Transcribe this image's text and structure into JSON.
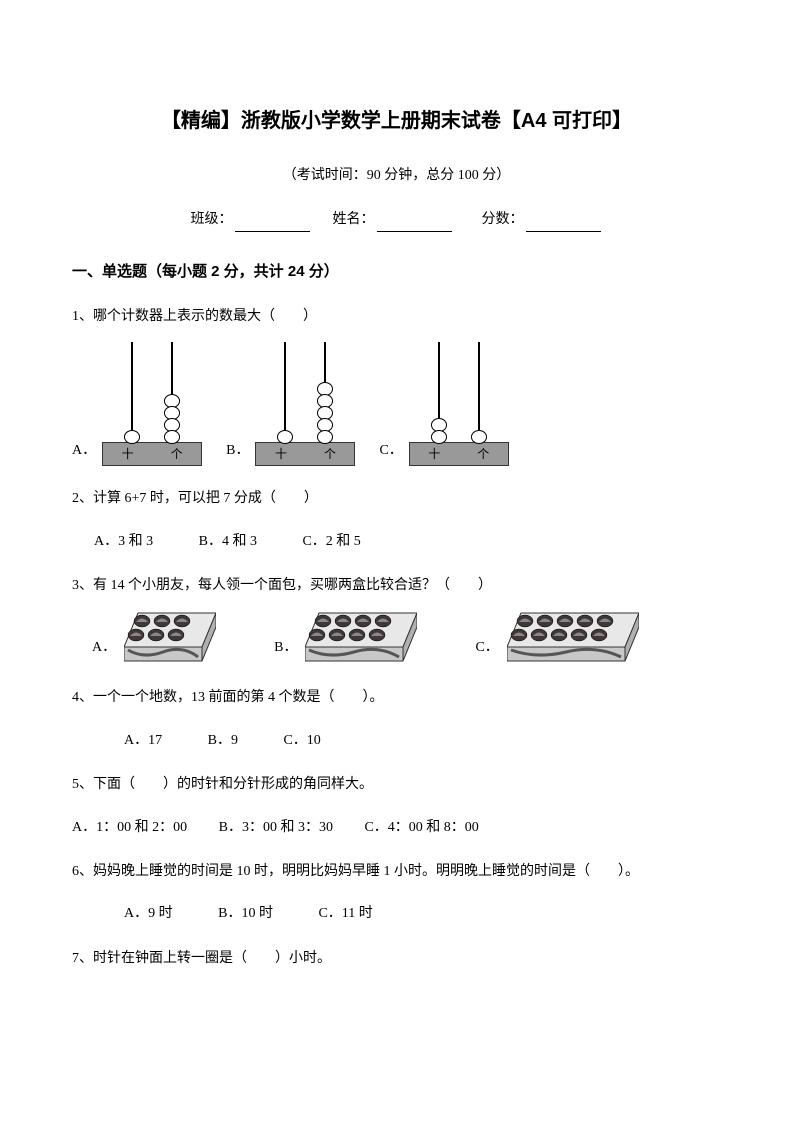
{
  "title": "【精编】浙教版小学数学上册期末试卷【A4 可打印】",
  "examInfo": "（考试时间：90 分钟，总分 100 分）",
  "fillLabels": {
    "class": "班级：",
    "name": "姓名：",
    "score": "分数："
  },
  "section1": "一、单选题（每小题 2 分，共计 24 分）",
  "q1": {
    "text": "1、哪个计数器上表示的数最大（　　）",
    "optA": "A．",
    "optB": "B．",
    "optC": "C．",
    "baseTen": "十",
    "baseOne": "个",
    "abacusA": {
      "tens": 1,
      "ones": 4
    },
    "abacusB": {
      "tens": 1,
      "ones": 5
    },
    "abacusC": {
      "tens": 2,
      "ones": 1
    }
  },
  "q2": {
    "text": "2、计算 6+7 时，可以把 7 分成（　　）",
    "optA": "A．3 和 3",
    "optB": "B．4 和 3",
    "optC": "C．2 和 5"
  },
  "q3": {
    "text": "3、有 14 个小朋友，每人领一个面包，买哪两盒比较合适？（　　）",
    "optA": "A．",
    "optB": "B．",
    "optC": "C．",
    "boxA": {
      "cols": 3,
      "rows": 2
    },
    "boxB": {
      "cols": 4,
      "rows": 2
    },
    "boxC": {
      "cols": 5,
      "rows": 2
    }
  },
  "q4": {
    "text": "4、一个一个地数，13 前面的第 4 个数是（　　）。",
    "optA": "A．17",
    "optB": "B．9",
    "optC": "C．10"
  },
  "q5": {
    "text": "5、下面（　　）的时针和分针形成的角同样大。",
    "optA": "A．1：00 和 2：00",
    "optB": "B．3：00 和 3：30",
    "optC": "C．4：00 和 8：00"
  },
  "q6": {
    "text": "6、妈妈晚上睡觉的时间是 10 时，明明比妈妈早睡 1 小时。明明晚上睡觉的时间是（　　）。",
    "optA": "A．9 时",
    "optB": "B．10 时",
    "optC": "C．11 时"
  },
  "q7": {
    "text": "7、时针在钟面上转一圈是（　　）小时。"
  },
  "colors": {
    "text": "#000000",
    "bg": "#ffffff",
    "abacusBase": "#999999",
    "breadBox": "#d0d0d0",
    "breadDark": "#403838"
  }
}
